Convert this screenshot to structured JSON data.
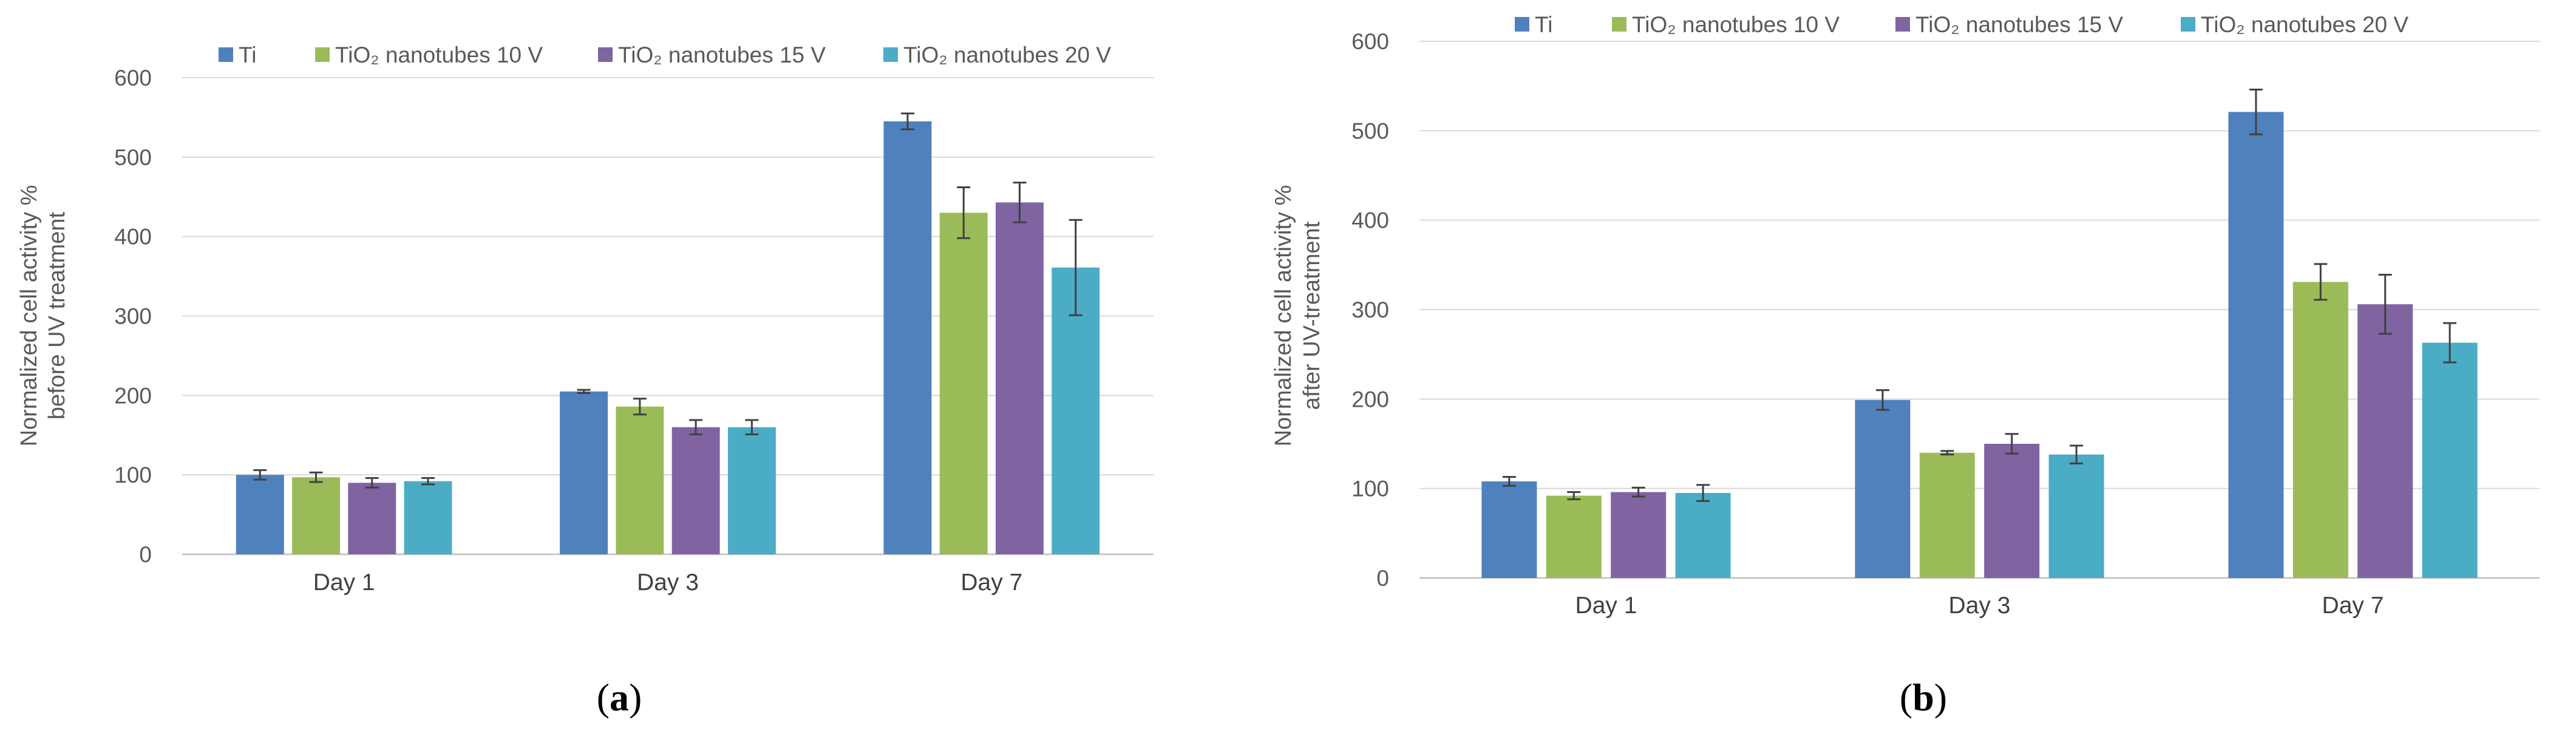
{
  "chart_data": [
    {
      "type": "bar",
      "panel": "a",
      "ylabel_line1": "Normalized cell  activity %",
      "ylabel_line2": "before UV treatment",
      "ylim": [
        0,
        600
      ],
      "yticks": [
        0,
        100,
        200,
        300,
        400,
        500,
        600
      ],
      "categories": [
        "Day 1",
        "Day 3",
        "Day 7"
      ],
      "series": [
        {
          "name": "Ti",
          "legend_text": "Ti",
          "color": "#4f81bd",
          "values": [
            100,
            205,
            545
          ],
          "errors": [
            6,
            2,
            10
          ]
        },
        {
          "name": "TiO2 nanotubes 10 V",
          "legend_text": "TiO₂  nanotubes 10 V",
          "color": "#9bbb59",
          "values": [
            97,
            186,
            430
          ],
          "errors": [
            6,
            10,
            32
          ]
        },
        {
          "name": "TiO2 nanotubes 15 V",
          "legend_text": "TiO₂  nanotubes 15 V",
          "color": "#8064a2",
          "values": [
            90,
            160,
            443
          ],
          "errors": [
            6,
            9,
            25
          ]
        },
        {
          "name": "TiO2 nanotubes 20 V",
          "legend_text": "TiO₂  nanotubes 20 V",
          "color": "#4bacc6",
          "values": [
            92,
            160,
            361
          ],
          "errors": [
            4,
            9,
            60
          ]
        }
      ]
    },
    {
      "type": "bar",
      "panel": "b",
      "ylabel_line1": "Normalized cell  activity %",
      "ylabel_line2": "after UV-treatment",
      "ylim": [
        0,
        600
      ],
      "yticks": [
        0,
        100,
        200,
        300,
        400,
        500,
        600
      ],
      "categories": [
        "Day 1",
        "Day 3",
        "Day 7"
      ],
      "series": [
        {
          "name": "Ti",
          "legend_text": "Ti",
          "color": "#4f81bd",
          "values": [
            108,
            199,
            521
          ],
          "errors": [
            5,
            11,
            25
          ]
        },
        {
          "name": "TiO2 nanotubes 10 V",
          "legend_text": "TiO₂  nanotubes 10 V",
          "color": "#9bbb59",
          "values": [
            92,
            140,
            331
          ],
          "errors": [
            4,
            2,
            20
          ]
        },
        {
          "name": "TiO2 nanotubes 15 V",
          "legend_text": "TiO₂  nanotubes 15 V",
          "color": "#8064a2",
          "values": [
            96,
            150,
            306
          ],
          "errors": [
            5,
            11,
            33
          ]
        },
        {
          "name": "TiO2 nanotubes 20 V",
          "legend_text": "TiO₂  nanotubes 20 V",
          "color": "#4bacc6",
          "values": [
            95,
            138,
            263
          ],
          "errors": [
            9,
            10,
            22
          ]
        }
      ]
    }
  ],
  "colors": {
    "gridline": "#d9d9d9",
    "axis": "#bfbfbf",
    "error_bar": "#404040"
  }
}
